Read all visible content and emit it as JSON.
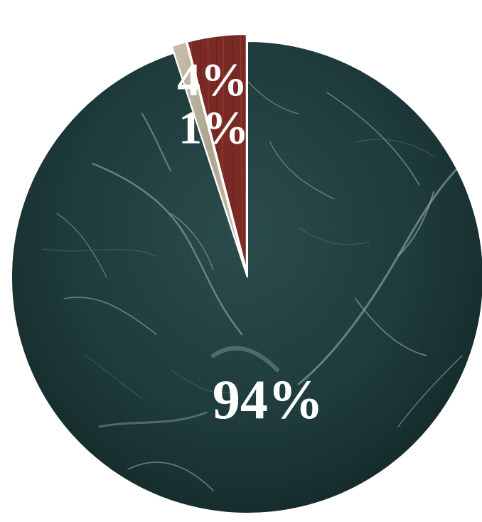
{
  "chart_data": {
    "type": "pie",
    "title": "",
    "slices": [
      {
        "label": "94%",
        "value": 94,
        "color": "#1e3a3a",
        "texture": "dark-green-marble"
      },
      {
        "label": "4%",
        "value": 4,
        "color": "#7a2a24",
        "texture": "red-wood"
      },
      {
        "label": "1%",
        "value": 1,
        "color": "#b7ad98",
        "texture": "beige-stone"
      }
    ],
    "exploded": [
      "4%",
      "1%"
    ],
    "legend": "none"
  }
}
